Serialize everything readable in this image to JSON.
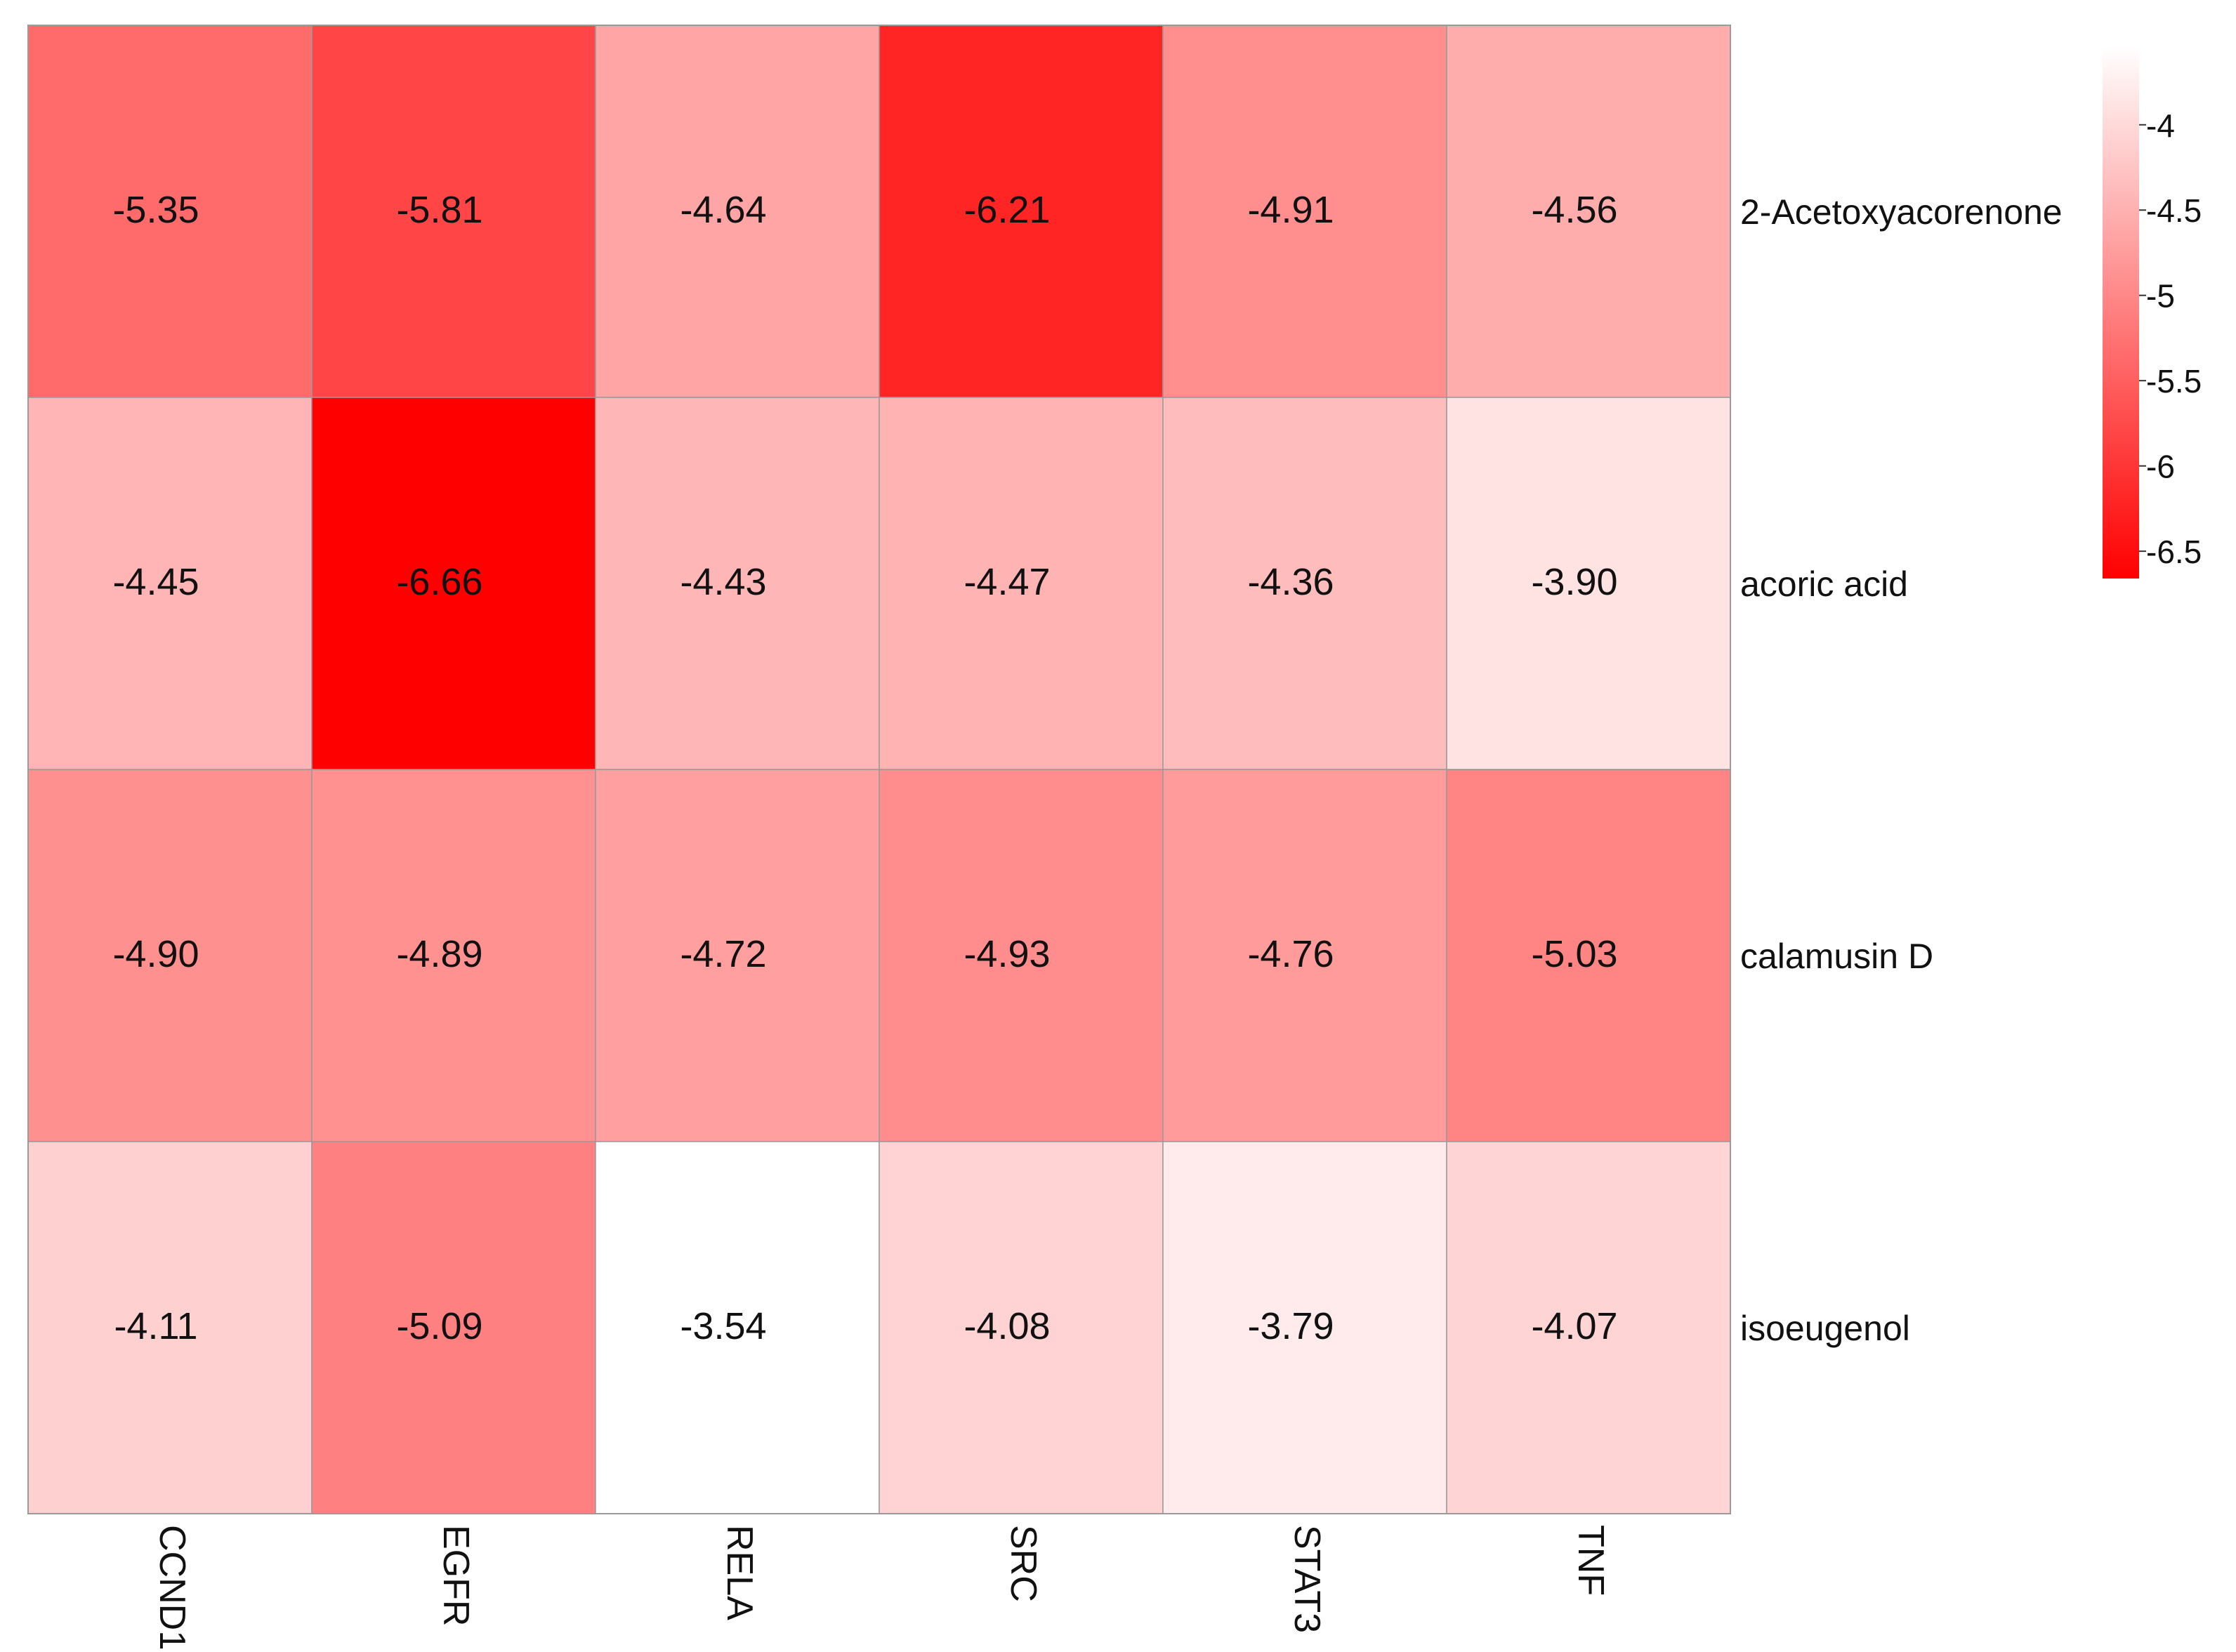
{
  "chart_data": {
    "type": "heatmap",
    "title": "",
    "xlabel": "",
    "ylabel": "",
    "columns": [
      "CCND1",
      "EGFR",
      "RELA",
      "SRC",
      "STAT3",
      "TNF"
    ],
    "rows": [
      "2-Acetoxyacorenone",
      "acoric acid",
      "calamusin D",
      "isoeugenol"
    ],
    "values": [
      [
        -5.35,
        -5.81,
        -4.64,
        -6.21,
        -4.91,
        -4.56
      ],
      [
        -4.45,
        -6.66,
        -4.43,
        -4.47,
        -4.36,
        -3.9
      ],
      [
        -4.9,
        -4.89,
        -4.72,
        -4.93,
        -4.76,
        -5.03
      ],
      [
        -4.11,
        -5.09,
        -3.54,
        -4.08,
        -3.79,
        -4.07
      ]
    ],
    "labels": [
      [
        "-5.35",
        "-5.81",
        "-4.64",
        "-6.21",
        "-4.91",
        "-4.56"
      ],
      [
        "-4.45",
        "-6.66",
        "-4.43",
        "-4.47",
        "-4.36",
        "-3.90"
      ],
      [
        "-4.90",
        "-4.89",
        "-4.72",
        "-4.93",
        "-4.76",
        "-5.03"
      ],
      [
        "-4.11",
        "-5.09",
        "-3.54",
        "-4.08",
        "-3.79",
        "-4.07"
      ]
    ],
    "color_range": [
      -6.66,
      -3.54
    ],
    "color_low": "#ff0000",
    "color_high": "#ffffff",
    "colorbar": {
      "ticks": [
        -4,
        -4.5,
        -5,
        -5.5,
        -6,
        -6.5
      ],
      "tick_labels": [
        "-4",
        "-4.5",
        "-5",
        "-5.5",
        "-6",
        "-6.5"
      ],
      "position": "right"
    },
    "grid_line_color": "#9a9a9a"
  }
}
